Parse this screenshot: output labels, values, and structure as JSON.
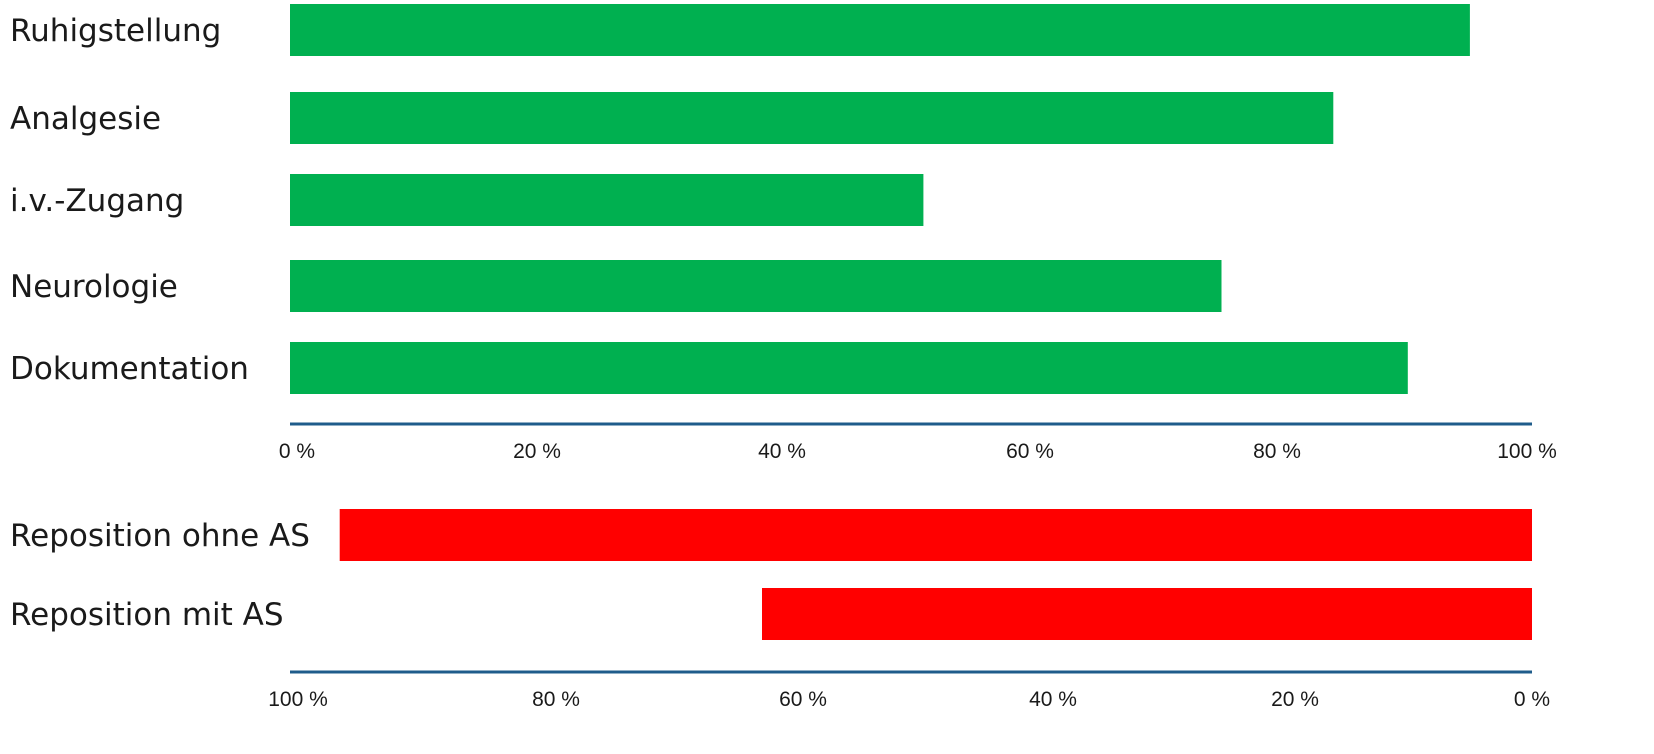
{
  "chart_data": [
    {
      "type": "bar",
      "orientation": "horizontal",
      "categories": [
        "Ruhigstellung",
        "Analgesie",
        "i.v.-Zugang",
        "Neurologie",
        "Dokumentation"
      ],
      "values": [
        95,
        84,
        51,
        75,
        90
      ],
      "unit": "%",
      "xlim": [
        0,
        100
      ],
      "x_ticks": [
        "0 %",
        "20 %",
        "40 %",
        "60 %",
        "80 %",
        "100 %"
      ],
      "direction": "left-to-right",
      "grid": false,
      "color": "#00b050",
      "axis_color": "#1f5c8b"
    },
    {
      "type": "bar",
      "orientation": "horizontal",
      "categories": [
        "Reposition ohne AS",
        "Reposition mit AS"
      ],
      "values": [
        96,
        62
      ],
      "unit": "%",
      "xlim": [
        0,
        100
      ],
      "x_ticks": [
        "100 %",
        "80 %",
        "60 %",
        "40 %",
        "20 %",
        "0 %"
      ],
      "direction": "right-to-left",
      "grid": false,
      "color": "#ff0000",
      "axis_color": "#1f5c8b"
    }
  ]
}
